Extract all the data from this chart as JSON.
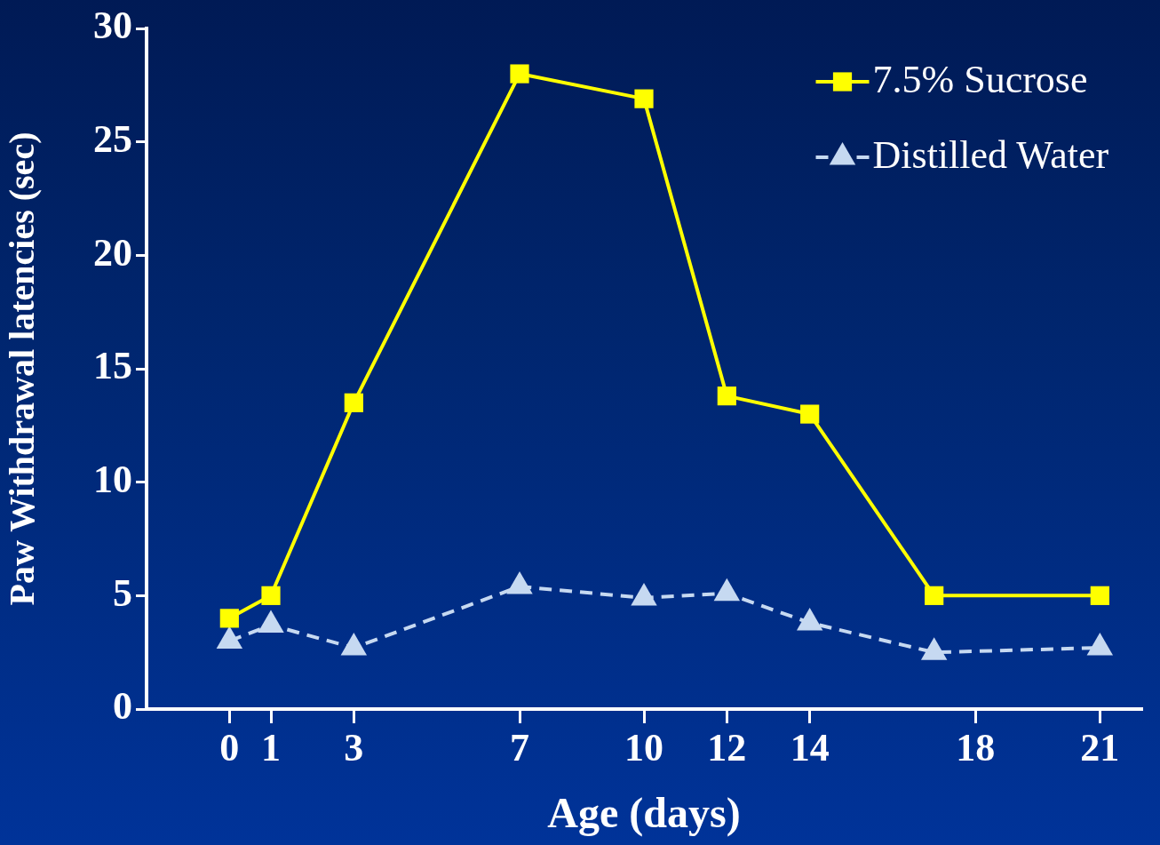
{
  "chart_data": {
    "type": "line",
    "xlabel": "Age (days)",
    "ylabel": "Paw Withdrawal latencies (sec)",
    "x": [
      0,
      1,
      3,
      7,
      10,
      12,
      14,
      17,
      21
    ],
    "series": [
      {
        "name": "7.5% Sucrose",
        "color": "#ffff00",
        "marker": "square",
        "line_style": "solid",
        "values": [
          4.0,
          5.0,
          13.5,
          28.0,
          26.9,
          13.8,
          13.0,
          5.0,
          5.0
        ]
      },
      {
        "name": "Distilled Water",
        "color": "#c6d9f1",
        "marker": "triangle",
        "line_style": "dashed",
        "values": [
          3.0,
          3.7,
          2.7,
          5.4,
          4.9,
          5.1,
          3.8,
          2.5,
          2.7
        ]
      }
    ],
    "xlim": [
      -2,
      22
    ],
    "xticks": [
      0,
      1,
      3,
      7,
      10,
      12,
      14,
      18,
      21
    ],
    "ylim": [
      0,
      30
    ],
    "yticks": [
      0,
      5,
      10,
      15,
      20,
      25,
      30
    ],
    "grid": false,
    "legend": "top right"
  }
}
